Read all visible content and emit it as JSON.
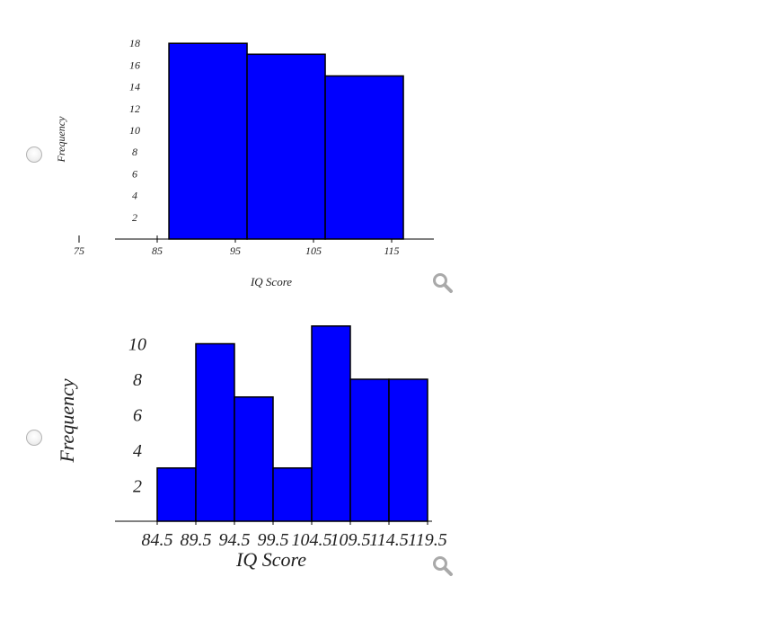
{
  "options": [
    {
      "chart_data": {
        "type": "bar",
        "categories": [
          "75-85",
          "85-95",
          "95-105",
          "105-115",
          "115-125"
        ],
        "values": [
          0,
          18,
          17,
          15,
          0
        ],
        "x_ticks": [
          75,
          85,
          95,
          105,
          115
        ],
        "y_ticks": [
          2,
          4,
          6,
          8,
          10,
          12,
          14,
          16,
          18
        ],
        "xlabel": "IQ Score",
        "ylabel": "Frequency",
        "bar_color": "#0000ff",
        "xlim": [
          75,
          120
        ],
        "ylim": [
          0,
          18
        ],
        "grid": false
      }
    },
    {
      "chart_data": {
        "type": "bar",
        "bin_edges": [
          84.5,
          89.5,
          94.5,
          99.5,
          104.5,
          109.5,
          114.5,
          119.5
        ],
        "values": [
          3,
          10,
          7,
          3,
          11,
          8,
          8
        ],
        "x_ticks": [
          "84.5",
          "89.5",
          "94.5",
          "99.5",
          "104.5",
          "109.5",
          "114.5",
          "119.5"
        ],
        "y_ticks": [
          2,
          4,
          6,
          8,
          10
        ],
        "xlabel": "IQ Score",
        "ylabel": "Frequency",
        "bar_color": "#0000ff",
        "xlim": [
          84.5,
          119.5
        ],
        "ylim": [
          0,
          10
        ],
        "grid": false
      }
    }
  ],
  "icons": {
    "zoom": "magnifier-icon",
    "radio": "radio-button"
  }
}
